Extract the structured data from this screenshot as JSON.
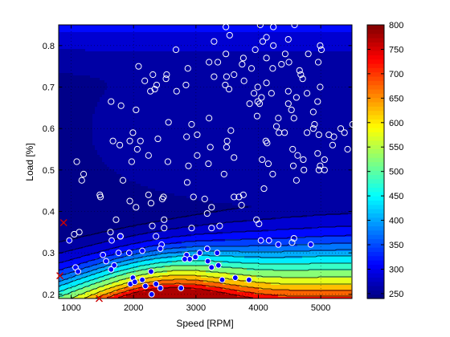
{
  "chart_data": {
    "type": "contour",
    "xlabel": "Speed [RPM]",
    "ylabel": "Load [%]",
    "xlim": [
      800,
      5500
    ],
    "ylim": [
      0.19,
      0.85
    ],
    "xticks": [
      1000,
      2000,
      3000,
      4000,
      5000
    ],
    "yticks": [
      0.2,
      0.3,
      0.4,
      0.5,
      0.6,
      0.7,
      0.8
    ],
    "grid": "dotted",
    "colorbar": {
      "range": [
        240,
        800
      ],
      "ticks": [
        250,
        300,
        350,
        400,
        450,
        500,
        550,
        600,
        650,
        700,
        750,
        800
      ],
      "colormap": "jet",
      "placement": "right"
    },
    "contour_levels": [
      250,
      270,
      300,
      330,
      360,
      390,
      420,
      460,
      500,
      550,
      600,
      650,
      700,
      750
    ],
    "series": [
      {
        "marker": "open-circle",
        "color": "#ffffff",
        "points": [
          [
            3480,
            0.845
          ],
          [
            4030,
            0.85
          ],
          [
            4240,
            0.845
          ],
          [
            4580,
            0.85
          ],
          [
            3540,
            0.825
          ],
          [
            3290,
            0.81
          ],
          [
            4130,
            0.82
          ],
          [
            4070,
            0.81
          ],
          [
            4480,
            0.815
          ],
          [
            4990,
            0.8
          ],
          [
            5010,
            0.79
          ],
          [
            4240,
            0.8
          ],
          [
            2680,
            0.79
          ],
          [
            3480,
            0.78
          ],
          [
            3760,
            0.77
          ],
          [
            3950,
            0.79
          ],
          [
            4430,
            0.78
          ],
          [
            4800,
            0.78
          ],
          [
            3210,
            0.76
          ],
          [
            3350,
            0.76
          ],
          [
            3740,
            0.755
          ],
          [
            4130,
            0.77
          ],
          [
            4370,
            0.755
          ],
          [
            4490,
            0.76
          ],
          [
            4960,
            0.76
          ],
          [
            2080,
            0.75
          ],
          [
            2870,
            0.745
          ],
          [
            3890,
            0.745
          ],
          [
            4230,
            0.745
          ],
          [
            4660,
            0.74
          ],
          [
            2310,
            0.73
          ],
          [
            2530,
            0.73
          ],
          [
            3290,
            0.725
          ],
          [
            3490,
            0.725
          ],
          [
            3610,
            0.73
          ],
          [
            4680,
            0.73
          ],
          [
            2520,
            0.72
          ],
          [
            4710,
            0.72
          ],
          [
            2180,
            0.715
          ],
          [
            2840,
            0.705
          ],
          [
            3470,
            0.705
          ],
          [
            4130,
            0.71
          ],
          [
            2370,
            0.705
          ],
          [
            3770,
            0.715
          ],
          [
            3990,
            0.7
          ],
          [
            4990,
            0.7
          ],
          [
            2340,
            0.695
          ],
          [
            2690,
            0.69
          ],
          [
            3530,
            0.695
          ],
          [
            4480,
            0.69
          ],
          [
            2270,
            0.69
          ],
          [
            3930,
            0.685
          ],
          [
            4210,
            0.685
          ],
          [
            4780,
            0.685
          ],
          [
            4050,
            0.675
          ],
          [
            4610,
            0.675
          ],
          [
            1640,
            0.665
          ],
          [
            4480,
            0.66
          ],
          [
            3990,
            0.665
          ],
          [
            3860,
            0.66
          ],
          [
            4950,
            0.665
          ],
          [
            4880,
            0.64
          ],
          [
            1800,
            0.655
          ],
          [
            4020,
            0.66
          ],
          [
            2040,
            0.645
          ],
          [
            4530,
            0.645
          ],
          [
            3210,
            0.625
          ],
          [
            4570,
            0.625
          ],
          [
            3980,
            0.63
          ],
          [
            4320,
            0.625
          ],
          [
            2560,
            0.615
          ],
          [
            2930,
            0.61
          ],
          [
            4900,
            0.61
          ],
          [
            5510,
            0.61
          ],
          [
            4880,
            0.6
          ],
          [
            5320,
            0.6
          ],
          [
            4290,
            0.605
          ],
          [
            1990,
            0.59
          ],
          [
            3560,
            0.595
          ],
          [
            4780,
            0.59
          ],
          [
            4330,
            0.59
          ],
          [
            4420,
            0.59
          ],
          [
            5380,
            0.59
          ],
          [
            3020,
            0.585
          ],
          [
            4970,
            0.585
          ],
          [
            5130,
            0.585
          ],
          [
            5210,
            0.58
          ],
          [
            2850,
            0.58
          ],
          [
            2390,
            0.575
          ],
          [
            3500,
            0.57
          ],
          [
            1670,
            0.57
          ],
          [
            1940,
            0.57
          ],
          [
            2110,
            0.57
          ],
          [
            4120,
            0.57
          ],
          [
            4140,
            0.565
          ],
          [
            5190,
            0.56
          ],
          [
            1780,
            0.56
          ],
          [
            3230,
            0.555
          ],
          [
            3490,
            0.555
          ],
          [
            5430,
            0.55
          ],
          [
            2060,
            0.55
          ],
          [
            4550,
            0.55
          ],
          [
            4950,
            0.54
          ],
          [
            3020,
            0.535
          ],
          [
            4630,
            0.535
          ],
          [
            3610,
            0.53
          ],
          [
            2240,
            0.535
          ],
          [
            4720,
            0.525
          ],
          [
            5060,
            0.525
          ],
          [
            1090,
            0.52
          ],
          [
            1970,
            0.52
          ],
          [
            2550,
            0.52
          ],
          [
            3200,
            0.515
          ],
          [
            4060,
            0.525
          ],
          [
            4160,
            0.515
          ],
          [
            2880,
            0.51
          ],
          [
            4560,
            0.51
          ],
          [
            4990,
            0.51
          ],
          [
            4730,
            0.5
          ],
          [
            5060,
            0.5
          ],
          [
            1200,
            0.49
          ],
          [
            3450,
            0.49
          ],
          [
            4230,
            0.49
          ],
          [
            4970,
            0.5
          ],
          [
            1170,
            0.475
          ],
          [
            1830,
            0.475
          ],
          [
            2860,
            0.47
          ],
          [
            4610,
            0.475
          ],
          [
            4090,
            0.455
          ],
          [
            1460,
            0.44
          ],
          [
            3760,
            0.44
          ],
          [
            2240,
            0.44
          ],
          [
            2960,
            0.435
          ],
          [
            1470,
            0.435
          ],
          [
            2460,
            0.43
          ],
          [
            2480,
            0.435
          ],
          [
            3140,
            0.43
          ],
          [
            3610,
            0.435
          ],
          [
            3690,
            0.435
          ],
          [
            1940,
            0.425
          ],
          [
            2280,
            0.42
          ],
          [
            3250,
            0.41
          ],
          [
            3730,
            0.415
          ],
          [
            2040,
            0.41
          ],
          [
            3180,
            0.395
          ],
          [
            1720,
            0.38
          ],
          [
            2490,
            0.38
          ],
          [
            3970,
            0.38
          ],
          [
            1050,
            0.345
          ],
          [
            2360,
            0.34
          ],
          [
            2300,
            0.365
          ],
          [
            2930,
            0.36
          ],
          [
            4010,
            0.37
          ],
          [
            1630,
            0.35
          ],
          [
            1130,
            0.35
          ],
          [
            3250,
            0.36
          ],
          [
            3380,
            0.365
          ],
          [
            4570,
            0.335
          ],
          [
            4540,
            0.325
          ],
          [
            2490,
            0.36
          ],
          [
            1790,
            0.34
          ]
        ]
      },
      {
        "marker": "filled-circle",
        "color": "#0000ff",
        "points": [
          [
            970,
            0.33
          ],
          [
            1650,
            0.33
          ],
          [
            1790,
            0.34
          ],
          [
            2450,
            0.32
          ],
          [
            3060,
            0.3
          ],
          [
            3180,
            0.31
          ],
          [
            3340,
            0.3
          ],
          [
            1510,
            0.295
          ],
          [
            1760,
            0.3
          ],
          [
            2140,
            0.305
          ],
          [
            2430,
            0.31
          ],
          [
            2850,
            0.295
          ],
          [
            2990,
            0.29
          ],
          [
            4170,
            0.33
          ],
          [
            4040,
            0.33
          ],
          [
            1930,
            0.3
          ],
          [
            4320,
            0.32
          ],
          [
            2900,
            0.285
          ],
          [
            2820,
            0.285
          ],
          [
            4840,
            0.32
          ],
          [
            1560,
            0.28
          ],
          [
            1690,
            0.27
          ],
          [
            3190,
            0.28
          ],
          [
            3360,
            0.27
          ],
          [
            1070,
            0.265
          ],
          [
            2280,
            0.255
          ],
          [
            1640,
            0.26
          ],
          [
            1110,
            0.255
          ],
          [
            3250,
            0.265
          ],
          [
            3420,
            0.235
          ],
          [
            3630,
            0.24
          ],
          [
            3850,
            0.235
          ],
          [
            1990,
            0.24
          ],
          [
            2140,
            0.235
          ],
          [
            2360,
            0.225
          ],
          [
            1950,
            0.225
          ],
          [
            2020,
            0.23
          ],
          [
            2190,
            0.22
          ],
          [
            2430,
            0.215
          ],
          [
            2760,
            0.215
          ],
          [
            2290,
            0.2
          ]
        ]
      },
      {
        "marker": "x",
        "color": "#cc0000",
        "points": [
          [
            880,
            0.373
          ],
          [
            820,
            0.245
          ],
          [
            1450,
            0.19
          ]
        ]
      }
    ]
  }
}
